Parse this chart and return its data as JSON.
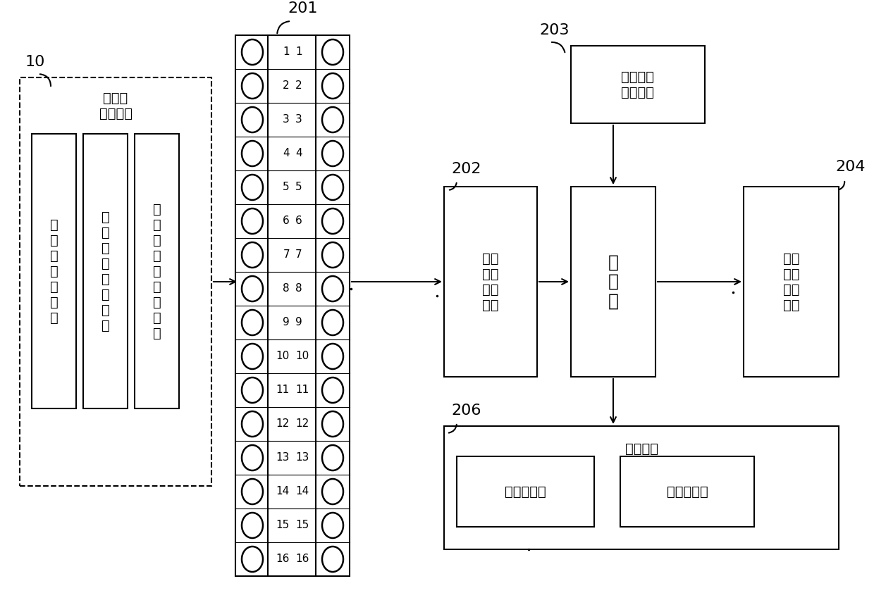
{
  "bg_color": "#ffffff",
  "line_color": "#000000",
  "label_10": "10",
  "label_201": "201",
  "label_202": "202",
  "label_203": "203",
  "label_204": "204",
  "label_206": "206",
  "box_station_label": "加工站\n检测电路",
  "box_material": "物\n料\n检\n测\n传\n感\n器",
  "box_table": "加\n工\n台\n伸\n缩\n传\n感\n器",
  "box_limit": "加\n工\n上\n、\n下\n限\n传\n感\n器",
  "box_input": "输入\n电平\n转换\n电路",
  "box_mcu": "单\n片\n机",
  "box_output": "输出\n电平\n转换\n电路",
  "box_command": "主令信号\n输入电路",
  "box_display": "显示电路",
  "box_indicator": "指示灯显示",
  "box_digit": "数码管显示",
  "connector_rows": 16,
  "font_size_chinese": 14,
  "font_size_number": 11,
  "font_size_ref": 16
}
